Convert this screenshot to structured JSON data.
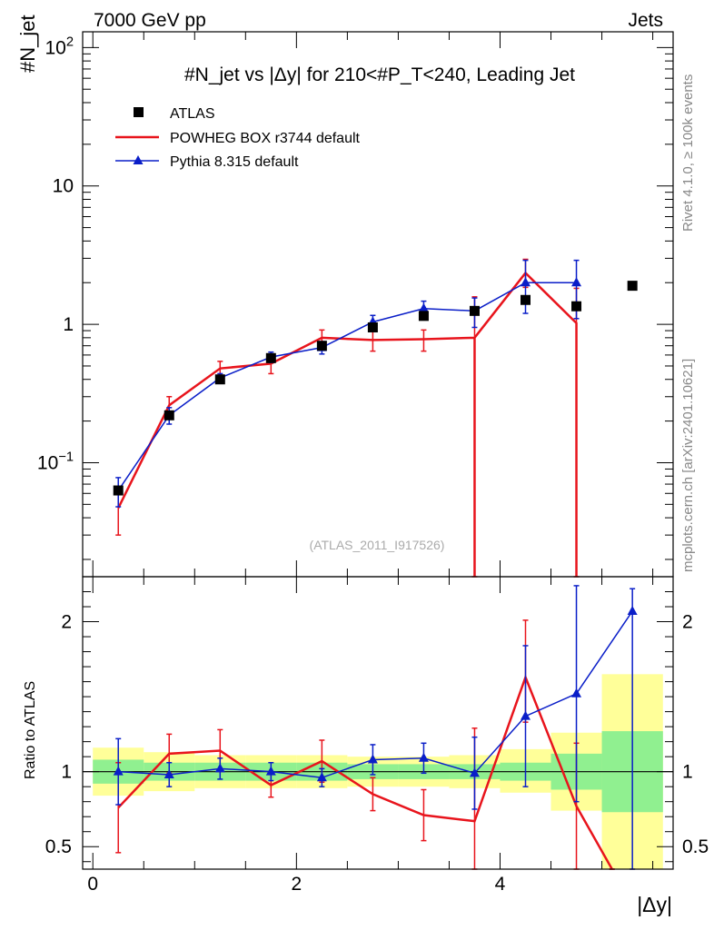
{
  "header": {
    "left": "7000 GeV pp",
    "right": "Jets"
  },
  "title": "#N_jet vs |Δy| for 210<#P_T<240, Leading Jet",
  "side_label_top": "Rivet 4.1.0, ≥ 100k events",
  "side_label_bottom": "mcplots.cern.ch [arXiv:2401.10621]",
  "watermark": "(ATLAS_2011_I917526)",
  "legend": [
    {
      "name": "ATLAS",
      "kind": "marker-square",
      "color": "#000000"
    },
    {
      "name": "POWHEG BOX r3744 default",
      "kind": "line",
      "color": "#e8141c"
    },
    {
      "name": "Pythia 8.315 default",
      "kind": "line-triangle",
      "color": "#0a1ec8"
    }
  ],
  "colors": {
    "data": "#000000",
    "powheg": "#e8141c",
    "pythia": "#0a1ec8",
    "band_inner": "#90f090",
    "band_outer": "#ffff99"
  },
  "chart_data": [
    {
      "type": "line",
      "panel": "main",
      "scale": "log",
      "ylabel": "#N_jet",
      "ylim": [
        0.015,
        130
      ],
      "xlim": [
        -0.1,
        5.7
      ],
      "yticks": [
        {
          "value": 0.1,
          "label": "10^-1"
        },
        {
          "value": 1,
          "label": "1"
        },
        {
          "value": 10,
          "label": "10"
        },
        {
          "value": 100,
          "label": "10^2"
        }
      ],
      "x_bins": [
        [
          0,
          0.5
        ],
        [
          0.5,
          1
        ],
        [
          1,
          1.5
        ],
        [
          1.5,
          2
        ],
        [
          2,
          2.5
        ],
        [
          2.5,
          3
        ],
        [
          3,
          3.5
        ],
        [
          3.5,
          4
        ],
        [
          4,
          4.5
        ],
        [
          4.5,
          5
        ],
        [
          5,
          5.6
        ]
      ],
      "series": [
        {
          "name": "ATLAS",
          "x": [
            0.25,
            0.75,
            1.25,
            1.75,
            2.25,
            2.75,
            3.25,
            3.75,
            4.25,
            4.75,
            5.3
          ],
          "values": [
            0.063,
            0.22,
            0.4,
            0.57,
            0.7,
            0.95,
            1.15,
            1.25,
            1.5,
            1.35,
            1.9
          ]
        },
        {
          "name": "POWHEG BOX r3744 default",
          "x": [
            0.25,
            0.75,
            1.25,
            1.75,
            2.25,
            2.75,
            3.25,
            3.75,
            4.25,
            4.75
          ],
          "values": [
            0.047,
            0.26,
            0.48,
            0.52,
            0.8,
            0.77,
            0.78,
            0.8,
            2.35,
            1.02
          ],
          "err_low": [
            0.017,
            0.03,
            0.05,
            0.08,
            0.09,
            0.13,
            0.14,
            0.8,
            0.5,
            1.02
          ],
          "err_high": [
            0.017,
            0.04,
            0.06,
            0.08,
            0.11,
            0.13,
            0.13,
            0.78,
            0.6,
            0.8
          ],
          "drops_to_zero_after": [
            3.75,
            4.75
          ]
        },
        {
          "name": "Pythia 8.315 default",
          "x": [
            0.25,
            0.75,
            1.25,
            1.75,
            2.25,
            2.75,
            3.25,
            3.75,
            4.25,
            4.75
          ],
          "values": [
            0.063,
            0.22,
            0.41,
            0.58,
            0.68,
            1.04,
            1.3,
            1.25,
            2.0,
            2.0
          ],
          "err_low": [
            0.015,
            0.03,
            0.03,
            0.05,
            0.07,
            0.1,
            0.12,
            0.3,
            0.8,
            0.9
          ],
          "err_high": [
            0.015,
            0.03,
            0.03,
            0.05,
            0.07,
            0.12,
            0.17,
            0.3,
            0.9,
            0.9
          ]
        }
      ]
    },
    {
      "type": "line",
      "panel": "ratio",
      "ylabel": "Ratio to ATLAS",
      "xlabel": "|Δy|",
      "ylim": [
        0.35,
        2.3
      ],
      "xlim": [
        -0.1,
        5.7
      ],
      "yticks": [
        {
          "value": 0.5,
          "label": "0.5"
        },
        {
          "value": 1,
          "label": "1"
        },
        {
          "value": 2,
          "label": "2"
        }
      ],
      "xticks": [
        {
          "value": 0,
          "label": "0"
        },
        {
          "value": 2,
          "label": "2"
        },
        {
          "value": 4,
          "label": "4"
        }
      ],
      "reference_line": 1,
      "bands": {
        "x_bins": [
          [
            0,
            0.5
          ],
          [
            0.5,
            1
          ],
          [
            1,
            1.5
          ],
          [
            1.5,
            2
          ],
          [
            2,
            2.5
          ],
          [
            2.5,
            3
          ],
          [
            3,
            3.5
          ],
          [
            3.5,
            4
          ],
          [
            4,
            4.5
          ],
          [
            4.5,
            5
          ],
          [
            5,
            5.6
          ]
        ],
        "inner_low": [
          0.92,
          0.94,
          0.94,
          0.94,
          0.94,
          0.95,
          0.95,
          0.95,
          0.94,
          0.88,
          0.73
        ],
        "inner_high": [
          1.08,
          1.06,
          1.06,
          1.06,
          1.06,
          1.05,
          1.05,
          1.05,
          1.06,
          1.12,
          1.27
        ],
        "outer_low": [
          0.84,
          0.87,
          0.89,
          0.89,
          0.89,
          0.9,
          0.9,
          0.89,
          0.86,
          0.74,
          0.35
        ],
        "outer_high": [
          1.16,
          1.13,
          1.11,
          1.11,
          1.11,
          1.1,
          1.1,
          1.11,
          1.15,
          1.26,
          1.65
        ]
      },
      "series": [
        {
          "name": "POWHEG BOX r3744 default",
          "x": [
            0.25,
            0.75,
            1.25,
            1.75,
            2.25,
            2.75,
            3.25,
            3.75,
            4.25,
            4.75,
            5.1
          ],
          "values": [
            0.76,
            1.12,
            1.14,
            0.91,
            1.07,
            0.85,
            0.71,
            0.67,
            1.63,
            0.77,
            0.35
          ],
          "err_low": [
            0.3,
            0.13,
            0.14,
            0.08,
            0.14,
            0.11,
            0.17,
            0.32,
            0.3,
            0.42,
            0
          ],
          "err_high": [
            0.3,
            0.13,
            0.14,
            0.08,
            0.14,
            0.11,
            0.17,
            0.62,
            0.38,
            0.42,
            0
          ]
        },
        {
          "name": "Pythia 8.315 default",
          "x": [
            0.25,
            0.75,
            1.25,
            1.75,
            2.25,
            2.75,
            3.25,
            3.75,
            4.25,
            4.75,
            5.3
          ],
          "values": [
            1.0,
            0.98,
            1.02,
            1.0,
            0.96,
            1.08,
            1.09,
            0.99,
            1.37,
            1.52,
            2.07
          ],
          "err_low": [
            0.22,
            0.08,
            0.07,
            0.06,
            0.06,
            0.1,
            0.1,
            0.24,
            0.47,
            0.72,
            1.72
          ],
          "err_high": [
            0.22,
            0.08,
            0.07,
            0.06,
            0.06,
            0.1,
            0.1,
            0.24,
            0.47,
            0.72,
            0.15
          ]
        }
      ]
    }
  ]
}
